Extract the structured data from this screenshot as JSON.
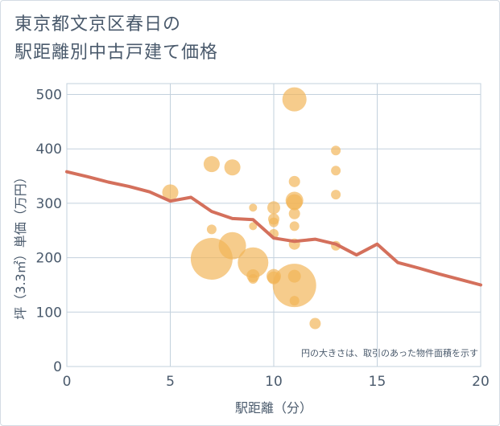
{
  "title": "東京都文京区春日の\n駅距離別中古戸建て価格",
  "chart_data": {
    "type": "scatter",
    "xlabel": "駅距離（分）",
    "ylabel": "坪（3.3㎡）単価（万円）",
    "xlim": [
      0,
      20
    ],
    "ylim": [
      0,
      520
    ],
    "x_ticks": [
      0,
      5,
      10,
      15,
      20
    ],
    "y_ticks": [
      0,
      100,
      200,
      300,
      400,
      500
    ],
    "grid": true,
    "annotation": "円の大きさは、取引のあった物件面積を示す",
    "bubble_color": "#f2b455",
    "line_color": "#d4705c",
    "points": [
      {
        "x": 5,
        "y": 320,
        "size": 10
      },
      {
        "x": 7,
        "y": 372,
        "size": 10
      },
      {
        "x": 7,
        "y": 252,
        "size": 6
      },
      {
        "x": 7,
        "y": 198,
        "size": 26
      },
      {
        "x": 8,
        "y": 366,
        "size": 10
      },
      {
        "x": 8,
        "y": 222,
        "size": 17
      },
      {
        "x": 9,
        "y": 292,
        "size": 5
      },
      {
        "x": 9,
        "y": 258,
        "size": 5
      },
      {
        "x": 9,
        "y": 191,
        "size": 19
      },
      {
        "x": 9,
        "y": 167,
        "size": 8
      },
      {
        "x": 9,
        "y": 161,
        "size": 6
      },
      {
        "x": 10,
        "y": 292,
        "size": 8
      },
      {
        "x": 10,
        "y": 271,
        "size": 7
      },
      {
        "x": 10,
        "y": 265,
        "size": 6
      },
      {
        "x": 10,
        "y": 244,
        "size": 6
      },
      {
        "x": 10,
        "y": 166,
        "size": 9
      },
      {
        "x": 10,
        "y": 163,
        "size": 8
      },
      {
        "x": 11,
        "y": 491,
        "size": 15
      },
      {
        "x": 11,
        "y": 340,
        "size": 7
      },
      {
        "x": 11,
        "y": 305,
        "size": 11
      },
      {
        "x": 11,
        "y": 302,
        "size": 10
      },
      {
        "x": 11,
        "y": 281,
        "size": 7
      },
      {
        "x": 11,
        "y": 258,
        "size": 6
      },
      {
        "x": 11,
        "y": 225,
        "size": 7
      },
      {
        "x": 11,
        "y": 166,
        "size": 8
      },
      {
        "x": 11,
        "y": 149,
        "size": 27
      },
      {
        "x": 11,
        "y": 121,
        "size": 6
      },
      {
        "x": 12,
        "y": 79,
        "size": 7
      },
      {
        "x": 13,
        "y": 397,
        "size": 6
      },
      {
        "x": 13,
        "y": 360,
        "size": 6
      },
      {
        "x": 13,
        "y": 316,
        "size": 6
      },
      {
        "x": 13,
        "y": 222,
        "size": 6
      }
    ],
    "trend_line": {
      "x": [
        0,
        1,
        2,
        3,
        4,
        5,
        6,
        7,
        8,
        9,
        10,
        11,
        12,
        13,
        14,
        15,
        16,
        17,
        18,
        19,
        20
      ],
      "y": [
        358,
        349,
        339,
        331,
        321,
        304,
        311,
        285,
        272,
        270,
        236,
        230,
        234,
        225,
        205,
        225,
        191,
        181,
        170,
        160,
        150
      ]
    }
  }
}
